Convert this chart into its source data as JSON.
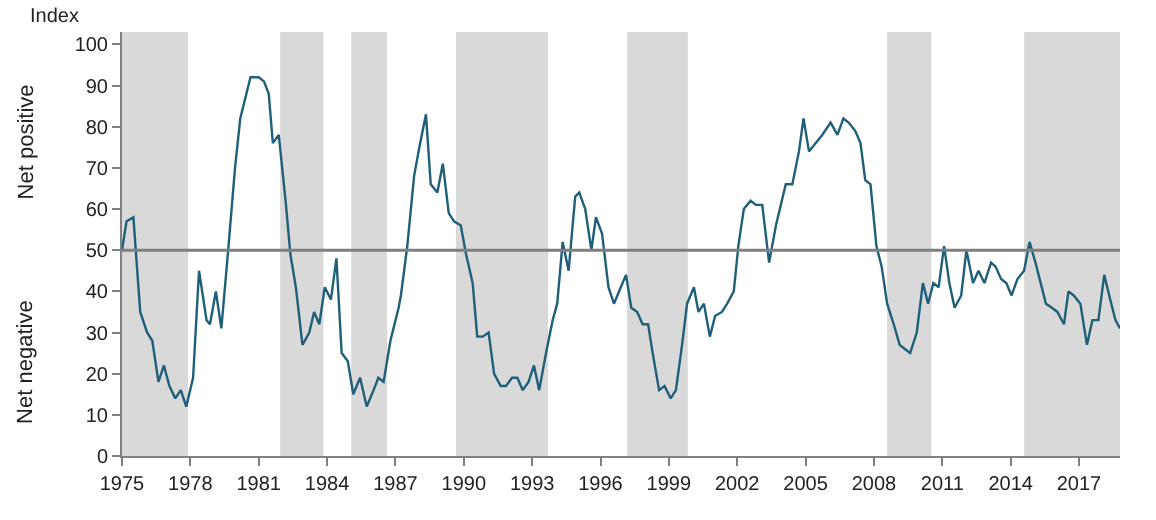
{
  "chart_data": {
    "type": "line",
    "ylabel": "Index",
    "annotations": [
      "Net positive",
      "Net negative"
    ],
    "series": [
      {
        "color": "#1f5f7a",
        "x": [
          1975.0,
          1975.2,
          1975.5,
          1975.8,
          1976.1,
          1976.33,
          1976.6,
          1976.84,
          1977.08,
          1977.34,
          1977.58,
          1977.82,
          1978.12,
          1978.38,
          1978.71,
          1978.86,
          1979.12,
          1979.36,
          1979.66,
          1979.96,
          1980.19,
          1980.64,
          1981.0,
          1981.23,
          1981.44,
          1981.62,
          1981.88,
          1982.18,
          1982.39,
          1982.63,
          1982.92,
          1983.22,
          1983.43,
          1983.66,
          1983.9,
          1984.17,
          1984.41,
          1984.64,
          1984.91,
          1985.15,
          1985.45,
          1985.74,
          1986.04,
          1986.25,
          1986.48,
          1986.78,
          1987.14,
          1987.24,
          1987.52,
          1987.82,
          1988.05,
          1988.34,
          1988.55,
          1988.84,
          1989.08,
          1989.34,
          1989.57,
          1989.87,
          1990.1,
          1990.39,
          1990.59,
          1990.83,
          1991.09,
          1991.33,
          1991.62,
          1991.85,
          1992.12,
          1992.35,
          1992.59,
          1992.84,
          1993.08,
          1993.31,
          1993.61,
          1993.9,
          1994.1,
          1994.34,
          1994.6,
          1994.89,
          1995.07,
          1995.33,
          1995.6,
          1995.8,
          1996.07,
          1996.35,
          1996.59,
          1996.89,
          1997.12,
          1997.35,
          1997.61,
          1997.85,
          1998.09,
          1998.29,
          1998.57,
          1998.81,
          1999.08,
          1999.31,
          1999.58,
          1999.8,
          2000.1,
          2000.3,
          2000.54,
          2000.8,
          2001.03,
          2001.33,
          2001.56,
          2001.85,
          2002.05,
          2002.29,
          2002.59,
          2002.82,
          2003.1,
          2003.4,
          2003.7,
          2004.13,
          2004.42,
          2004.71,
          2004.91,
          2005.15,
          2005.44,
          2005.73,
          2006.1,
          2006.4,
          2006.66,
          2006.89,
          2007.18,
          2007.41,
          2007.62,
          2007.85,
          2008.11,
          2008.34,
          2008.58,
          2008.87,
          2009.13,
          2009.36,
          2009.59,
          2009.88,
          2010.15,
          2010.38,
          2010.61,
          2010.84,
          2011.08,
          2011.31,
          2011.54,
          2011.83,
          2012.06,
          2012.35,
          2012.59,
          2012.85,
          2013.14,
          2013.34,
          2013.58,
          2013.81,
          2014.04,
          2014.3,
          2014.59,
          2014.83,
          2015.09,
          2015.32,
          2015.55,
          2015.81,
          2016.05,
          2016.34,
          2016.54,
          2016.77,
          2017.06,
          2017.35,
          2017.59,
          2017.85,
          2018.11,
          2018.37,
          2018.6,
          2018.8
        ],
        "values": [
          50,
          57,
          58,
          35,
          30,
          28,
          18,
          22,
          17,
          14,
          16,
          12,
          19,
          45,
          33,
          32,
          40,
          31,
          50,
          70,
          82,
          92,
          92,
          91,
          88,
          76,
          78,
          62,
          49,
          41,
          27,
          30,
          35,
          32,
          41,
          38,
          48,
          25,
          23,
          15,
          19,
          12,
          16,
          19,
          18,
          28,
          36,
          39,
          51,
          68,
          75,
          83,
          66,
          64,
          71,
          59,
          57,
          56,
          49,
          42,
          29,
          29,
          30,
          20,
          17,
          17,
          19,
          19,
          16,
          18,
          22,
          16,
          25,
          33,
          37,
          52,
          45,
          63,
          64,
          60,
          50,
          58,
          54,
          41,
          37,
          41,
          44,
          36,
          35,
          32,
          32,
          25,
          16,
          17,
          14,
          16,
          27,
          37,
          41,
          35,
          37,
          29,
          34,
          35,
          37,
          40,
          51,
          60,
          62,
          61,
          61,
          47,
          56,
          66,
          66,
          74,
          82,
          74,
          76,
          78,
          81,
          78,
          82,
          81,
          79,
          76,
          67,
          66,
          51,
          46,
          37,
          32,
          27,
          26,
          25,
          30,
          42,
          37,
          42,
          41,
          51,
          42,
          36,
          39,
          50,
          42,
          45,
          42,
          47,
          46,
          43,
          42,
          39,
          43,
          45,
          52,
          47,
          42,
          37,
          36,
          35,
          32,
          40,
          39,
          37,
          27,
          33,
          33,
          44,
          38,
          33,
          31
        ]
      }
    ],
    "xlim": [
      1975,
      2018.8
    ],
    "xticks": [
      1975,
      1978,
      1981,
      1984,
      1987,
      1990,
      1993,
      1996,
      1999,
      2002,
      2005,
      2008,
      2011,
      2014,
      2017
    ],
    "ylim": [
      0,
      103
    ],
    "yticks": [
      0,
      10,
      20,
      30,
      40,
      50,
      60,
      70,
      80,
      90,
      100
    ],
    "ref_lines": [
      {
        "axis": "y",
        "value": 50,
        "color": "#7f7f7f"
      }
    ],
    "bands": [
      {
        "axis": "x",
        "from": 1975.0,
        "to": 1977.9,
        "color": "#d9d9d9"
      },
      {
        "axis": "x",
        "from": 1981.94,
        "to": 1983.84,
        "color": "#d9d9d9"
      },
      {
        "axis": "x",
        "from": 1985.06,
        "to": 1986.63,
        "color": "#d9d9d9"
      },
      {
        "axis": "x",
        "from": 1989.66,
        "to": 1993.7,
        "color": "#d9d9d9"
      },
      {
        "axis": "x",
        "from": 1997.17,
        "to": 1999.83,
        "color": "#d9d9d9"
      },
      {
        "axis": "x",
        "from": 2008.58,
        "to": 2010.52,
        "color": "#d9d9d9"
      },
      {
        "axis": "x",
        "from": 2014.59,
        "to": 2018.8,
        "color": "#d9d9d9"
      }
    ],
    "grid": false,
    "legend": false,
    "marker": "none",
    "line_style": "solid"
  }
}
